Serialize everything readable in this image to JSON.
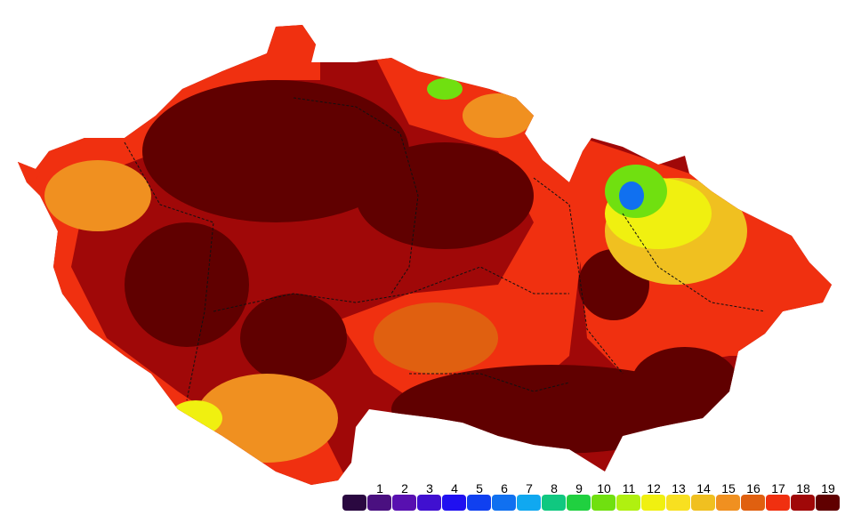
{
  "legend": {
    "labels": [
      1,
      2,
      3,
      4,
      5,
      6,
      7,
      8,
      9,
      10,
      11,
      12,
      13,
      14,
      15,
      16,
      17,
      18,
      19
    ],
    "colors": [
      "#2a0840",
      "#4a1080",
      "#5810b0",
      "#4010d0",
      "#2010f0",
      "#1040f0",
      "#1070f0",
      "#10a8f0",
      "#10c880",
      "#20d040",
      "#70e010",
      "#b0f010",
      "#f0f010",
      "#f8e020",
      "#f0c020",
      "#f09020",
      "#e06010",
      "#f03010",
      "#a00808",
      "#600000"
    ]
  }
}
